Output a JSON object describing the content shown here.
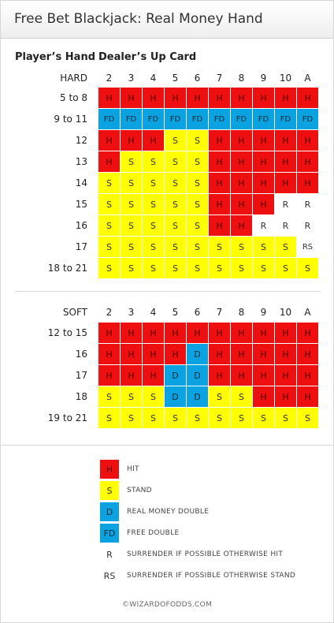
{
  "title": "Free Bet Blackjack: Real Money Hand",
  "players_hand_label": "Player’s Hand",
  "dealers_up_card_label": "Dealer’s Up Card",
  "columns": [
    "2",
    "3",
    "4",
    "5",
    "6",
    "7",
    "8",
    "9",
    "10",
    "A"
  ],
  "hard": {
    "label": "HARD",
    "rows": [
      {
        "label": "5 to 8",
        "cells": [
          "H",
          "H",
          "H",
          "H",
          "H",
          "H",
          "H",
          "H",
          "H",
          "H"
        ]
      },
      {
        "label": "9 to 11",
        "cells": [
          "FD",
          "FD",
          "FD",
          "FD",
          "FD",
          "FD",
          "FD",
          "FD",
          "FD",
          "FD"
        ]
      },
      {
        "label": "12",
        "cells": [
          "H",
          "H",
          "H",
          "S",
          "S",
          "H",
          "H",
          "H",
          "H",
          "H"
        ]
      },
      {
        "label": "13",
        "cells": [
          "H",
          "S",
          "S",
          "S",
          "S",
          "H",
          "H",
          "H",
          "H",
          "H"
        ]
      },
      {
        "label": "14",
        "cells": [
          "S",
          "S",
          "S",
          "S",
          "S",
          "H",
          "H",
          "H",
          "H",
          "H"
        ]
      },
      {
        "label": "15",
        "cells": [
          "S",
          "S",
          "S",
          "S",
          "S",
          "H",
          "H",
          "H",
          "R",
          "R"
        ]
      },
      {
        "label": "16",
        "cells": [
          "S",
          "S",
          "S",
          "S",
          "S",
          "H",
          "H",
          "R",
          "R",
          "R"
        ]
      },
      {
        "label": "17",
        "cells": [
          "S",
          "S",
          "S",
          "S",
          "S",
          "S",
          "S",
          "S",
          "S",
          "RS"
        ]
      },
      {
        "label": "18 to 21",
        "cells": [
          "S",
          "S",
          "S",
          "S",
          "S",
          "S",
          "S",
          "S",
          "S",
          "S"
        ]
      }
    ]
  },
  "soft": {
    "label": "SOFT",
    "rows": [
      {
        "label": "12 to 15",
        "cells": [
          "H",
          "H",
          "H",
          "H",
          "H",
          "H",
          "H",
          "H",
          "H",
          "H"
        ]
      },
      {
        "label": "16",
        "cells": [
          "H",
          "H",
          "H",
          "H",
          "D",
          "H",
          "H",
          "H",
          "H",
          "H"
        ]
      },
      {
        "label": "17",
        "cells": [
          "H",
          "H",
          "H",
          "D",
          "D",
          "H",
          "H",
          "H",
          "H",
          "H"
        ]
      },
      {
        "label": "18",
        "cells": [
          "S",
          "S",
          "S",
          "D",
          "D",
          "S",
          "S",
          "H",
          "H",
          "H"
        ]
      },
      {
        "label": "19 to 21",
        "cells": [
          "S",
          "S",
          "S",
          "S",
          "S",
          "S",
          "S",
          "S",
          "S",
          "S"
        ]
      }
    ]
  },
  "legend": [
    {
      "code": "H",
      "text": "HIT"
    },
    {
      "code": "S",
      "text": "STAND"
    },
    {
      "code": "D",
      "text": "REAL MONEY DOUBLE"
    },
    {
      "code": "FD",
      "text": "FREE DOUBLE"
    },
    {
      "code": "R",
      "text": "SURRENDER IF POSSIBLE OTHERWISE HIT"
    },
    {
      "code": "RS",
      "text": "SURRENDER IF POSSIBLE OTHERWISE STAND"
    }
  ],
  "copyright": "©WIZARDOFODDS.COM",
  "colors": {
    "hit": "#ee1010",
    "stand": "#ffff00",
    "double": "#0aa2e0",
    "surrender": "#ffffff"
  }
}
